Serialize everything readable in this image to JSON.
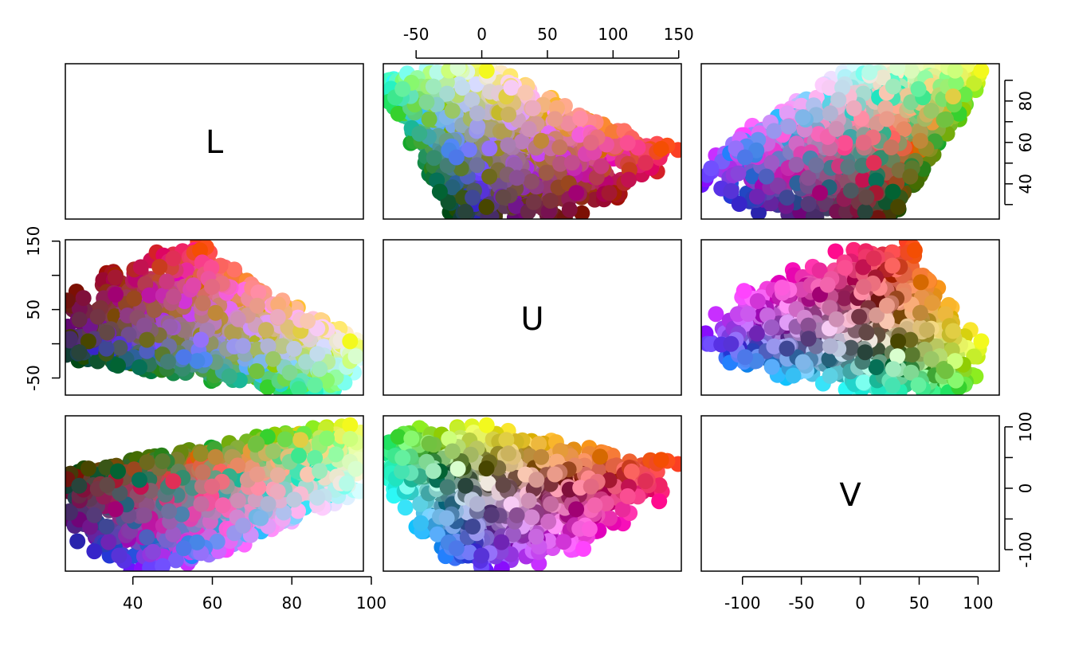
{
  "chart_data": {
    "type": "scatter",
    "variables": [
      "L",
      "U",
      "V"
    ],
    "diagonal_labels": [
      "L",
      "U",
      "V"
    ],
    "axes": {
      "L": {
        "range": [
          23,
          98
        ],
        "ticks": [
          40,
          60,
          80,
          100
        ],
        "mirror_ticks": [
          40,
          60,
          80
        ]
      },
      "U": {
        "range": [
          -75,
          152
        ],
        "ticks": [
          -50,
          0,
          50,
          100,
          150
        ]
      },
      "V": {
        "range": [
          -135,
          118
        ],
        "ticks": [
          -100,
          -50,
          0,
          50,
          100
        ]
      }
    },
    "marker_radius_px": 10,
    "points_per_panel_estimate": 1200,
    "grid": false,
    "legend": "none",
    "notes": "Scatterplot matrix of CIE Luv color coordinates; each point is drawn in its own color."
  }
}
